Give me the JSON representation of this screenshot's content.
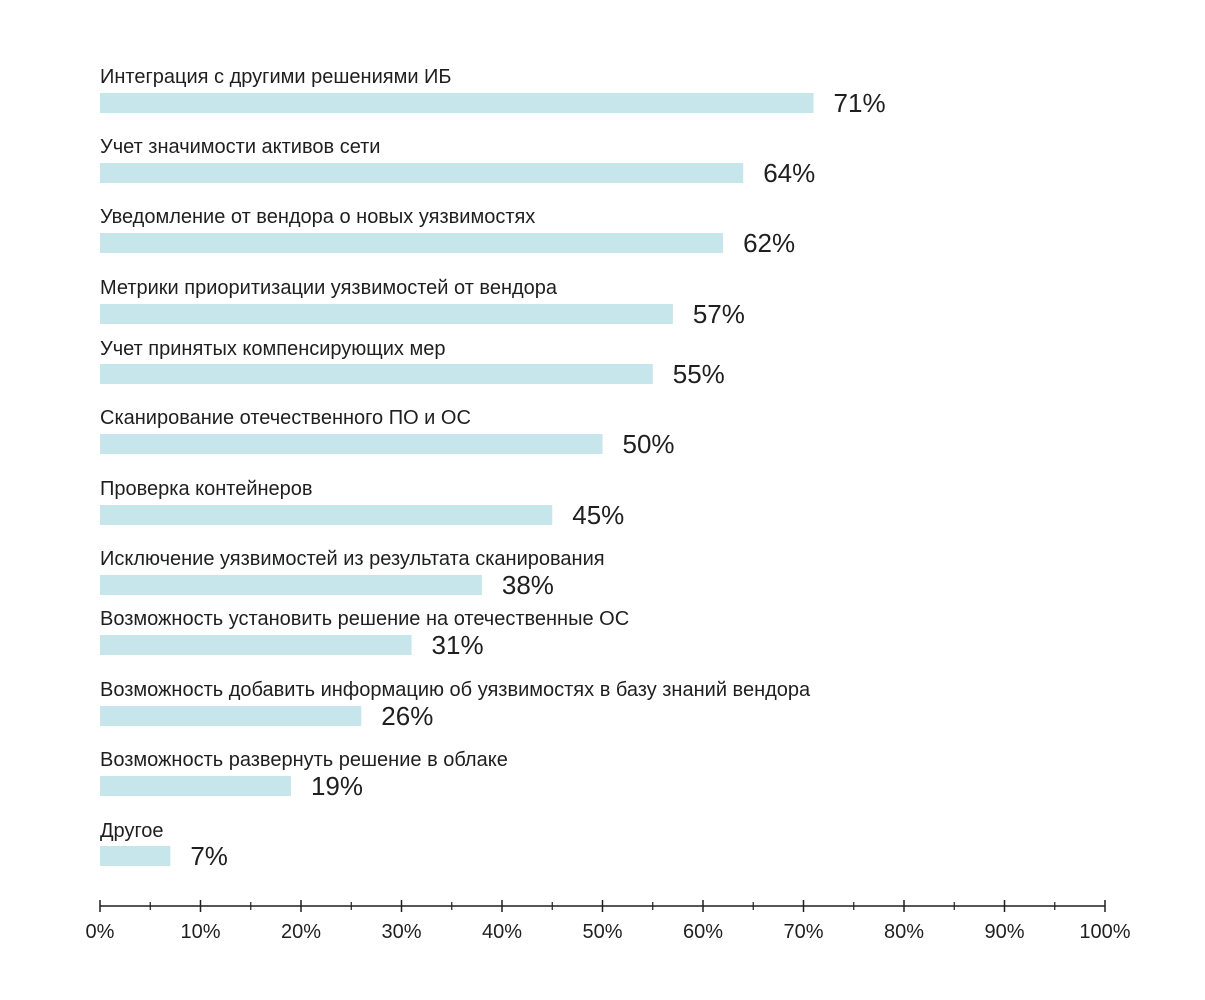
{
  "chart_data": {
    "type": "bar",
    "orientation": "horizontal",
    "categories": [
      "Интеграция с другими решениями ИБ",
      "Учет значимости активов сети",
      "Уведомление от вендора о новых уязвимостях",
      "Метрики приоритизации уязвимостей от вендора",
      "Учет принятых компенсирующих мер",
      "Сканирование отечественного ПО и ОС",
      "Проверка контейнеров",
      "Исключение уязвимостей из результата сканирования",
      "Возможность установить решение на отечественные ОС",
      "Возможность добавить информацию об уязвимостях в базу знаний вендора",
      "Возможность развернуть решение в облаке",
      "Другое"
    ],
    "values": [
      71,
      64,
      62,
      57,
      55,
      50,
      45,
      38,
      31,
      26,
      19,
      7
    ],
    "value_labels": [
      "71%",
      "64%",
      "62%",
      "57%",
      "55%",
      "50%",
      "45%",
      "38%",
      "31%",
      "26%",
      "19%",
      "7%"
    ],
    "xlim": [
      0,
      100
    ],
    "x_ticks": [
      "0%",
      "10%",
      "20%",
      "30%",
      "40%",
      "50%",
      "60%",
      "70%",
      "80%",
      "90%",
      "100%"
    ],
    "bar_color": "#c6e6ec",
    "text_color": "#1f1f1f",
    "axis_color": "#1f1f1f",
    "grid": false,
    "legend": "none"
  }
}
